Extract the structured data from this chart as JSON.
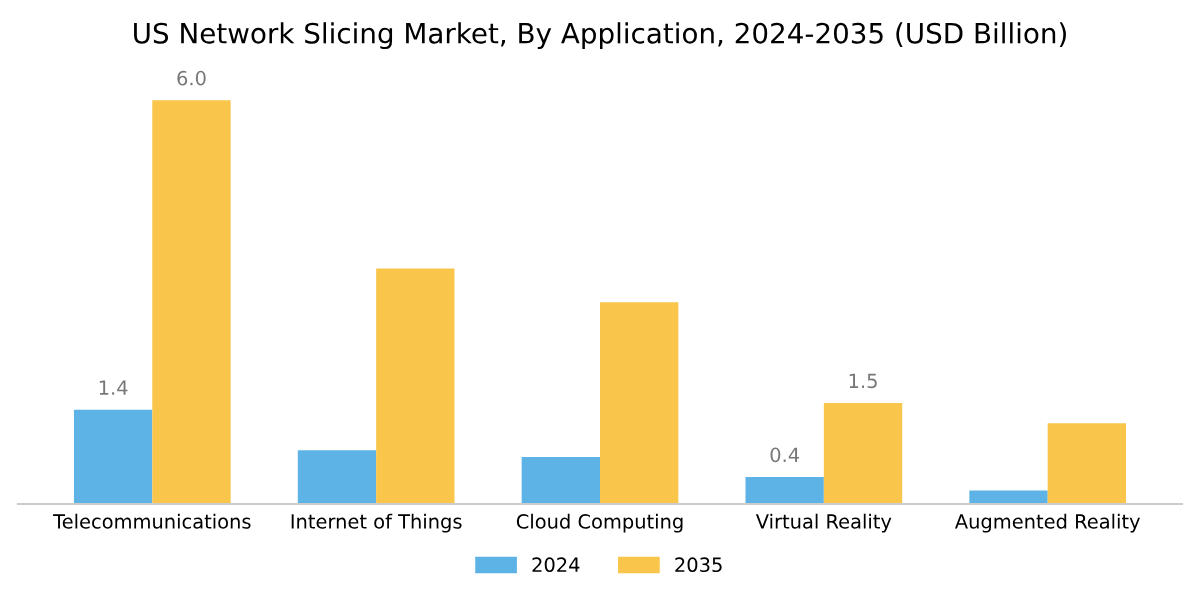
{
  "chart_data": {
    "type": "bar",
    "title": "US Network Slicing Market, By Application, 2024-2035 (USD Billion)",
    "categories": [
      "Telecommunications",
      "Internet of Things",
      "Cloud Computing",
      "Virtual Reality",
      "Augmented Reality"
    ],
    "series": [
      {
        "name": "2024",
        "color": "#5db3e6",
        "values": [
          1.4,
          0.8,
          0.7,
          0.4,
          0.2
        ],
        "value_labels": [
          "1.4",
          null,
          null,
          "0.4",
          null
        ]
      },
      {
        "name": "2035",
        "color": "#f9c54b",
        "values": [
          6.0,
          3.5,
          3.0,
          1.5,
          1.2
        ],
        "value_labels": [
          "6.0",
          null,
          null,
          "1.5",
          null
        ]
      }
    ],
    "grid": false,
    "legend": "bottom",
    "tick_labels": "x"
  }
}
